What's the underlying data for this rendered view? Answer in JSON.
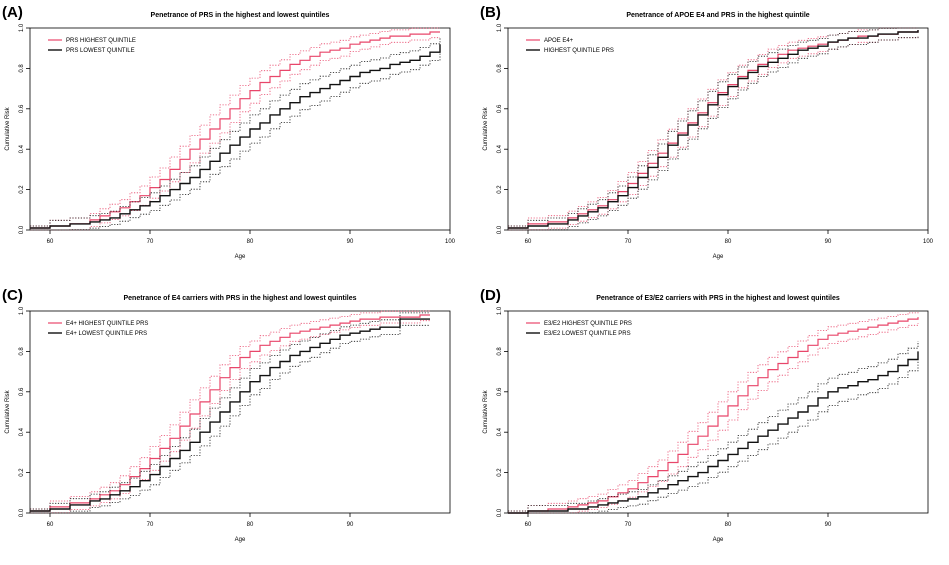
{
  "colors": {
    "high": "#e8466a",
    "low": "#111111"
  },
  "chart_data": [
    {
      "type": "line",
      "label": "(A)",
      "title": "Penetrance of PRS in the highest and lowest quintiles",
      "xlabel": "Age",
      "ylabel": "Cumulative Risk",
      "xlim": [
        58,
        100
      ],
      "ylim": [
        0,
        1.0
      ],
      "xticks": [
        60,
        70,
        80,
        90,
        100
      ],
      "yticks": [
        0.0,
        0.2,
        0.4,
        0.6,
        0.8,
        1.0
      ],
      "legend_position": "top-left",
      "grid": false,
      "confidence_bands": "dotted",
      "series": [
        {
          "name": "PRS HIGHEST QUINTILE",
          "x": [
            58,
            60,
            62,
            64,
            65,
            66,
            67,
            68,
            69,
            70,
            71,
            72,
            73,
            74,
            75,
            76,
            77,
            78,
            79,
            80,
            81,
            82,
            83,
            84,
            85,
            86,
            87,
            88,
            89,
            90,
            91,
            92,
            93,
            94,
            95,
            96,
            97,
            98,
            99
          ],
          "y": [
            0.01,
            0.02,
            0.03,
            0.05,
            0.07,
            0.09,
            0.11,
            0.14,
            0.17,
            0.21,
            0.25,
            0.3,
            0.35,
            0.4,
            0.45,
            0.5,
            0.55,
            0.6,
            0.65,
            0.69,
            0.73,
            0.76,
            0.79,
            0.82,
            0.84,
            0.86,
            0.88,
            0.89,
            0.9,
            0.92,
            0.93,
            0.94,
            0.95,
            0.96,
            0.96,
            0.97,
            0.97,
            0.98,
            0.98
          ]
        },
        {
          "name": "PRS LOWEST QUINTILE",
          "x": [
            58,
            60,
            62,
            64,
            65,
            66,
            67,
            68,
            69,
            70,
            71,
            72,
            73,
            74,
            75,
            76,
            77,
            78,
            79,
            80,
            81,
            82,
            83,
            84,
            85,
            86,
            87,
            88,
            89,
            90,
            91,
            92,
            93,
            94,
            95,
            96,
            97,
            98,
            99
          ],
          "y": [
            0.01,
            0.02,
            0.03,
            0.04,
            0.05,
            0.06,
            0.08,
            0.1,
            0.12,
            0.14,
            0.17,
            0.2,
            0.23,
            0.26,
            0.3,
            0.34,
            0.38,
            0.42,
            0.46,
            0.5,
            0.53,
            0.57,
            0.6,
            0.63,
            0.66,
            0.68,
            0.7,
            0.72,
            0.74,
            0.76,
            0.78,
            0.79,
            0.8,
            0.82,
            0.83,
            0.84,
            0.86,
            0.88,
            0.92
          ]
        }
      ]
    },
    {
      "type": "line",
      "label": "(B)",
      "title": "Penetrance of APOE E4 and PRS in the highest quintile",
      "xlabel": "Age",
      "ylabel": "Cumulative Risk",
      "xlim": [
        58,
        100
      ],
      "ylim": [
        0,
        1.0
      ],
      "xticks": [
        60,
        70,
        80,
        90,
        100
      ],
      "yticks": [
        0.0,
        0.2,
        0.4,
        0.6,
        0.8,
        1.0
      ],
      "legend_position": "top-left",
      "grid": false,
      "confidence_bands": "dotted",
      "series": [
        {
          "name": "APOE E4+",
          "x": [
            58,
            60,
            62,
            64,
            65,
            66,
            67,
            68,
            69,
            70,
            71,
            72,
            73,
            74,
            75,
            76,
            77,
            78,
            79,
            80,
            81,
            82,
            83,
            84,
            85,
            86,
            87,
            88,
            89,
            90,
            91,
            92,
            93,
            94,
            95,
            96,
            97,
            98,
            99
          ],
          "y": [
            0.01,
            0.03,
            0.04,
            0.06,
            0.08,
            0.1,
            0.12,
            0.15,
            0.19,
            0.23,
            0.28,
            0.33,
            0.38,
            0.43,
            0.48,
            0.53,
            0.58,
            0.63,
            0.68,
            0.72,
            0.76,
            0.79,
            0.82,
            0.85,
            0.87,
            0.89,
            0.9,
            0.91,
            0.92,
            0.93,
            0.94,
            0.95,
            0.96,
            0.96,
            0.97,
            0.97,
            0.98,
            0.98,
            0.99
          ]
        },
        {
          "name": "HIGHEST QUINTILE PRS",
          "x": [
            58,
            60,
            62,
            64,
            65,
            66,
            67,
            68,
            69,
            70,
            71,
            72,
            73,
            74,
            75,
            76,
            77,
            78,
            79,
            80,
            81,
            82,
            83,
            84,
            85,
            86,
            87,
            88,
            89,
            90,
            91,
            92,
            93,
            94,
            95,
            96,
            97,
            98,
            99
          ],
          "y": [
            0.01,
            0.02,
            0.03,
            0.05,
            0.07,
            0.09,
            0.11,
            0.14,
            0.17,
            0.21,
            0.26,
            0.31,
            0.36,
            0.42,
            0.47,
            0.52,
            0.57,
            0.62,
            0.67,
            0.71,
            0.75,
            0.78,
            0.81,
            0.83,
            0.85,
            0.87,
            0.89,
            0.9,
            0.91,
            0.93,
            0.94,
            0.95,
            0.95,
            0.96,
            0.97,
            0.97,
            0.98,
            0.98,
            0.99
          ]
        }
      ]
    },
    {
      "type": "line",
      "label": "(C)",
      "title": "Penetrance of E4 carriers with PRS in the highest and lowest quintiles",
      "xlabel": "Age",
      "ylabel": "Cumulative Risk",
      "xlim": [
        58,
        100
      ],
      "ylim": [
        0,
        1.0
      ],
      "xticks": [
        60,
        70,
        80,
        90
      ],
      "yticks": [
        0.0,
        0.2,
        0.4,
        0.6,
        0.8,
        1.0
      ],
      "legend_position": "top-left",
      "grid": false,
      "confidence_bands": "dotted",
      "series": [
        {
          "name": "E4+ HIGHEST QUINTILE PRS",
          "x": [
            58,
            60,
            62,
            64,
            65,
            66,
            67,
            68,
            69,
            70,
            71,
            72,
            73,
            74,
            75,
            76,
            77,
            78,
            79,
            80,
            81,
            82,
            83,
            84,
            85,
            86,
            87,
            88,
            89,
            90,
            91,
            92,
            93,
            95,
            97,
            98
          ],
          "y": [
            0.01,
            0.03,
            0.05,
            0.07,
            0.09,
            0.11,
            0.14,
            0.18,
            0.22,
            0.27,
            0.32,
            0.37,
            0.43,
            0.49,
            0.55,
            0.61,
            0.67,
            0.72,
            0.77,
            0.8,
            0.83,
            0.85,
            0.87,
            0.89,
            0.9,
            0.91,
            0.92,
            0.93,
            0.94,
            0.95,
            0.96,
            0.96,
            0.97,
            0.97,
            0.98,
            0.98
          ]
        },
        {
          "name": "E4+ LOWEST QUINTILE PRS",
          "x": [
            58,
            60,
            62,
            64,
            65,
            66,
            67,
            68,
            69,
            70,
            71,
            72,
            73,
            74,
            75,
            76,
            77,
            78,
            79,
            80,
            81,
            82,
            83,
            84,
            85,
            86,
            87,
            88,
            89,
            90,
            91,
            92,
            93,
            95,
            97,
            98
          ],
          "y": [
            0.01,
            0.02,
            0.04,
            0.06,
            0.07,
            0.09,
            0.11,
            0.13,
            0.16,
            0.19,
            0.23,
            0.27,
            0.31,
            0.35,
            0.4,
            0.45,
            0.5,
            0.55,
            0.6,
            0.65,
            0.68,
            0.72,
            0.75,
            0.78,
            0.8,
            0.82,
            0.84,
            0.86,
            0.88,
            0.89,
            0.9,
            0.91,
            0.92,
            0.96,
            0.96,
            0.96
          ]
        }
      ]
    },
    {
      "type": "line",
      "label": "(D)",
      "title": "Penetrance of E3/E2 carriers with PRS in the highest and lowest quintiles",
      "xlabel": "Age",
      "ylabel": "Cumulative Risk",
      "xlim": [
        58,
        100
      ],
      "ylim": [
        0,
        1.0
      ],
      "xticks": [
        60,
        70,
        80,
        90
      ],
      "yticks": [
        0.0,
        0.2,
        0.4,
        0.6,
        0.8,
        1.0
      ],
      "legend_position": "top-left",
      "grid": false,
      "confidence_bands": "dotted",
      "series": [
        {
          "name": "E3/E2 HIGHEST QUINTILE PRS",
          "x": [
            58,
            60,
            62,
            64,
            65,
            66,
            67,
            68,
            69,
            70,
            71,
            72,
            73,
            74,
            75,
            76,
            77,
            78,
            79,
            80,
            81,
            82,
            83,
            84,
            85,
            86,
            87,
            88,
            89,
            90,
            91,
            92,
            93,
            94,
            95,
            96,
            97,
            98,
            99
          ],
          "y": [
            0.0,
            0.01,
            0.02,
            0.03,
            0.04,
            0.05,
            0.06,
            0.08,
            0.1,
            0.12,
            0.15,
            0.18,
            0.21,
            0.25,
            0.29,
            0.34,
            0.38,
            0.43,
            0.48,
            0.53,
            0.58,
            0.63,
            0.67,
            0.71,
            0.74,
            0.77,
            0.8,
            0.83,
            0.86,
            0.88,
            0.89,
            0.9,
            0.91,
            0.92,
            0.93,
            0.94,
            0.95,
            0.96,
            0.97
          ]
        },
        {
          "name": "E3/E2 LOWEST QUINTILE PRS",
          "x": [
            58,
            60,
            62,
            64,
            65,
            66,
            67,
            68,
            69,
            70,
            71,
            72,
            73,
            74,
            75,
            76,
            77,
            78,
            79,
            80,
            81,
            82,
            83,
            84,
            85,
            86,
            87,
            88,
            89,
            90,
            91,
            92,
            93,
            94,
            95,
            96,
            97,
            98,
            99
          ],
          "y": [
            0.0,
            0.01,
            0.01,
            0.02,
            0.02,
            0.03,
            0.04,
            0.05,
            0.06,
            0.07,
            0.08,
            0.1,
            0.12,
            0.14,
            0.16,
            0.18,
            0.2,
            0.23,
            0.26,
            0.29,
            0.32,
            0.35,
            0.38,
            0.41,
            0.44,
            0.47,
            0.5,
            0.53,
            0.57,
            0.6,
            0.62,
            0.63,
            0.65,
            0.66,
            0.68,
            0.7,
            0.73,
            0.76,
            0.8
          ]
        }
      ]
    }
  ]
}
